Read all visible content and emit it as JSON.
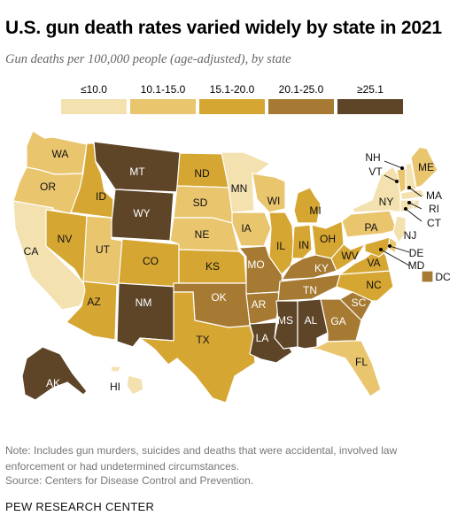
{
  "title": "U.S. gun death rates varied widely by state in 2021",
  "subtitle": "Gun deaths per 100,000 people (age-adjusted), by state",
  "legend": [
    {
      "label": "≤10.0",
      "color": "#f3e1b0"
    },
    {
      "label": "10.1-15.0",
      "color": "#e9c56e"
    },
    {
      "label": "15.1-20.0",
      "color": "#d6a632"
    },
    {
      "label": "20.1-25.0",
      "color": "#a67a32"
    },
    {
      "label": "≥25.1",
      "color": "#5e4528"
    }
  ],
  "states": {
    "WA": {
      "label": "WA",
      "bin": 1
    },
    "OR": {
      "label": "OR",
      "bin": 1
    },
    "CA": {
      "label": "CA",
      "bin": 0
    },
    "NV": {
      "label": "NV",
      "bin": 2
    },
    "ID": {
      "label": "ID",
      "bin": 2
    },
    "MT": {
      "label": "MT",
      "bin": 4
    },
    "WY": {
      "label": "WY",
      "bin": 4
    },
    "UT": {
      "label": "UT",
      "bin": 1
    },
    "AZ": {
      "label": "AZ",
      "bin": 2
    },
    "CO": {
      "label": "CO",
      "bin": 2
    },
    "NM": {
      "label": "NM",
      "bin": 4
    },
    "ND": {
      "label": "ND",
      "bin": 2
    },
    "SD": {
      "label": "SD",
      "bin": 1
    },
    "NE": {
      "label": "NE",
      "bin": 1
    },
    "KS": {
      "label": "KS",
      "bin": 2
    },
    "OK": {
      "label": "OK",
      "bin": 3
    },
    "TX": {
      "label": "TX",
      "bin": 2
    },
    "MN": {
      "label": "MN",
      "bin": 0
    },
    "IA": {
      "label": "IA",
      "bin": 1
    },
    "MO": {
      "label": "MO",
      "bin": 3
    },
    "AR": {
      "label": "AR",
      "bin": 3
    },
    "LA": {
      "label": "LA",
      "bin": 4
    },
    "WI": {
      "label": "WI",
      "bin": 1
    },
    "IL": {
      "label": "IL",
      "bin": 2
    },
    "MI": {
      "label": "MI",
      "bin": 2
    },
    "IN": {
      "label": "IN",
      "bin": 2
    },
    "OH": {
      "label": "OH",
      "bin": 2
    },
    "KY": {
      "label": "KY",
      "bin": 3
    },
    "TN": {
      "label": "TN",
      "bin": 3
    },
    "MS": {
      "label": "MS",
      "bin": 4
    },
    "AL": {
      "label": "AL",
      "bin": 4
    },
    "GA": {
      "label": "GA",
      "bin": 3
    },
    "FL": {
      "label": "FL",
      "bin": 1
    },
    "SC": {
      "label": "SC",
      "bin": 3
    },
    "NC": {
      "label": "NC",
      "bin": 2
    },
    "VA": {
      "label": "VA",
      "bin": 2
    },
    "WV": {
      "label": "WV",
      "bin": 2
    },
    "PA": {
      "label": "PA",
      "bin": 1
    },
    "NY": {
      "label": "NY",
      "bin": 0
    },
    "VT": {
      "label": "VT",
      "bin": 1
    },
    "NH": {
      "label": "NH",
      "bin": 0
    },
    "ME": {
      "label": "ME",
      "bin": 1
    },
    "MA": {
      "label": "MA",
      "bin": 0
    },
    "RI": {
      "label": "RI",
      "bin": 0
    },
    "CT": {
      "label": "CT",
      "bin": 0
    },
    "NJ": {
      "label": "NJ",
      "bin": 0
    },
    "DE": {
      "label": "DE",
      "bin": 1
    },
    "MD": {
      "label": "MD",
      "bin": 2
    },
    "DC": {
      "label": "DC",
      "bin": 3
    },
    "AK": {
      "label": "AK",
      "bin": 4
    },
    "HI": {
      "label": "HI",
      "bin": 0
    }
  },
  "note": "Note: Includes gun murders, suicides and deaths that were accidental, involved law enforcement or had undetermined circumstances.",
  "source": "Source: Centers for Disease Control and Prevention.",
  "brand": "PEW RESEARCH CENTER"
}
